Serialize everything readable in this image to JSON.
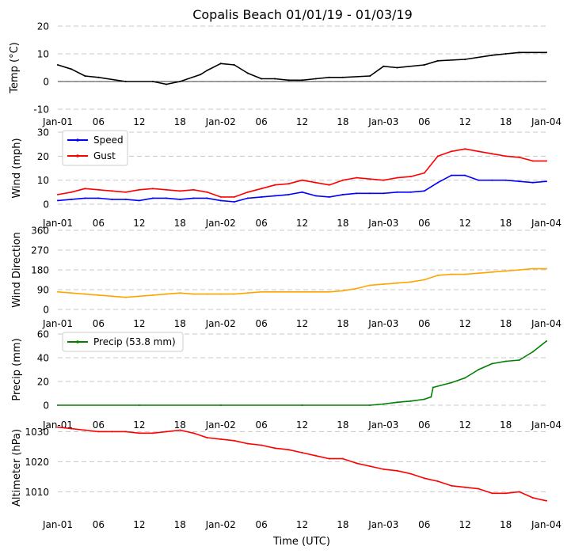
{
  "title": "Copalis Beach 01/01/19 - 01/03/19",
  "x_label": "Time (UTC)",
  "x_ticks": [
    "Jan-01",
    "06",
    "12",
    "18",
    "Jan-02",
    "06",
    "12",
    "18",
    "Jan-03",
    "06",
    "12",
    "18",
    "Jan-04"
  ],
  "colors": {
    "temp": "#000000",
    "speed": "#0000ff",
    "gust": "#ff0000",
    "direction": "#ffa500",
    "precip": "#008000",
    "altimeter": "#ff0000",
    "grid": "#c8c8c8"
  },
  "chart_data": [
    {
      "type": "line",
      "id": "temp",
      "ylabel": "Temp ($^\\circ$C)",
      "ylabel_display": "Temp (°C)",
      "ylim": [
        -10,
        20
      ],
      "yticks": [
        -10,
        0,
        10,
        20
      ],
      "zero_line": true,
      "x_hours": [
        0,
        2,
        4,
        6,
        10,
        14,
        16,
        18,
        21,
        22,
        24,
        26,
        28,
        30,
        32,
        34,
        36,
        38,
        40,
        42,
        46,
        48,
        50,
        54,
        56,
        60,
        64,
        66,
        68,
        72
      ],
      "series": [
        {
          "name": "Temp",
          "values": [
            6,
            4.5,
            2,
            1.5,
            0,
            0,
            -1,
            0,
            2.5,
            4,
            6.5,
            6,
            3,
            1,
            1,
            0.5,
            0.5,
            1,
            1.5,
            1.5,
            2,
            5.5,
            5,
            6,
            7.5,
            8,
            9.5,
            10,
            10.5,
            10.5
          ]
        }
      ]
    },
    {
      "type": "line",
      "id": "wind",
      "ylabel": "Wind (mph)",
      "ylim": [
        0,
        30
      ],
      "yticks": [
        0,
        10,
        20,
        30
      ],
      "legend": "upper-left",
      "x_hours": [
        0,
        2,
        4,
        6,
        8,
        10,
        12,
        14,
        16,
        18,
        20,
        22,
        24,
        26,
        28,
        30,
        32,
        34,
        36,
        38,
        40,
        42,
        44,
        46,
        48,
        50,
        52,
        54,
        56,
        58,
        60,
        62,
        64,
        66,
        68,
        70,
        72
      ],
      "series": [
        {
          "name": "Speed",
          "values": [
            1.5,
            2,
            2.5,
            2.5,
            2,
            2,
            1.5,
            2.5,
            2.5,
            2,
            2.5,
            2.5,
            1.5,
            1,
            2.5,
            3,
            3.5,
            4,
            5,
            3.5,
            3,
            4,
            4.5,
            4.5,
            4.5,
            5,
            5,
            5.5,
            9,
            12,
            12,
            10,
            10,
            10,
            9.5,
            9,
            9.5
          ]
        },
        {
          "name": "Gust",
          "values": [
            4,
            5,
            6.5,
            6,
            5.5,
            5,
            6,
            6.5,
            6,
            5.5,
            6,
            5,
            3,
            3,
            5,
            6.5,
            8,
            8.5,
            10,
            9,
            8,
            10,
            11,
            10.5,
            10,
            11,
            11.5,
            13,
            20,
            22,
            23,
            22,
            21,
            20,
            19.5,
            18,
            18
          ]
        }
      ]
    },
    {
      "type": "line",
      "id": "direction",
      "ylabel": "Wind Direction",
      "ylim": [
        0,
        360
      ],
      "yticks": [
        0,
        90,
        180,
        270,
        360
      ],
      "x_hours": [
        0,
        2,
        4,
        6,
        8,
        10,
        12,
        14,
        16,
        18,
        20,
        22,
        24,
        26,
        28,
        30,
        32,
        34,
        36,
        38,
        40,
        42,
        44,
        46,
        48,
        50,
        52,
        54,
        56,
        58,
        60,
        62,
        64,
        66,
        68,
        70,
        72
      ],
      "series": [
        {
          "name": "Direction",
          "values": [
            80,
            75,
            70,
            65,
            60,
            55,
            60,
            65,
            70,
            75,
            70,
            70,
            70,
            70,
            75,
            80,
            80,
            80,
            80,
            80,
            80,
            85,
            95,
            110,
            115,
            120,
            125,
            135,
            155,
            160,
            160,
            165,
            170,
            175,
            180,
            185,
            185
          ]
        }
      ]
    },
    {
      "type": "line",
      "id": "precip",
      "ylabel": "Precip (mm)",
      "ylim": [
        0,
        60
      ],
      "yticks": [
        0,
        20,
        40,
        60
      ],
      "legend": "upper-left",
      "x_hours": [
        0,
        12,
        24,
        36,
        46,
        48,
        50,
        52,
        54,
        55,
        55.3,
        58,
        60,
        62,
        64,
        66,
        68,
        70,
        72
      ],
      "series": [
        {
          "name": "Precip (53.8 mm)",
          "values": [
            0,
            0,
            0,
            0,
            0,
            1,
            2.5,
            3.5,
            5,
            7,
            15,
            19,
            23,
            30,
            35,
            37,
            38,
            45,
            54
          ]
        }
      ]
    },
    {
      "type": "line",
      "id": "altimeter",
      "ylabel": "Altimeter (hPa)",
      "ylim": [
        1003,
        1033
      ],
      "yticks": [
        1010,
        1020,
        1030
      ],
      "x_hours": [
        0,
        2,
        4,
        6,
        8,
        10,
        12,
        14,
        16,
        18,
        20,
        22,
        24,
        26,
        28,
        30,
        32,
        34,
        36,
        38,
        40,
        42,
        44,
        46,
        48,
        50,
        52,
        54,
        56,
        58,
        60,
        62,
        64,
        66,
        68,
        70,
        72
      ],
      "series": [
        {
          "name": "Altimeter",
          "values": [
            1031.5,
            1031,
            1030.5,
            1030,
            1030,
            1030,
            1029.5,
            1029.5,
            1030,
            1030.5,
            1029.5,
            1028,
            1027.5,
            1027,
            1026,
            1025.5,
            1024.5,
            1024,
            1023,
            1022,
            1021,
            1021,
            1019.5,
            1018.5,
            1017.5,
            1017,
            1016,
            1014.5,
            1013.5,
            1012,
            1011.5,
            1011,
            1009.5,
            1009.5,
            1010,
            1008,
            1007
          ]
        }
      ]
    }
  ]
}
